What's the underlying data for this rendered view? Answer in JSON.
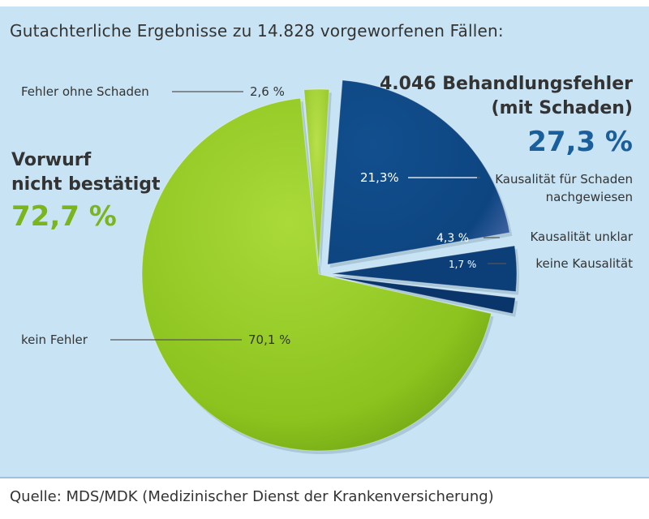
{
  "chart_data": {
    "type": "pie",
    "title": "Gutachterliche Ergebnisse zu 14.828 vorgeworfenen Fällen:",
    "source": "Quelle: MDS/MDK (Medizinischer Dienst der Krankenversicherung)",
    "groups": [
      {
        "label_line1": "Vorwurf",
        "label_line2": "nicht bestätigt",
        "percent_text": "72,7 %",
        "value": 72.7
      },
      {
        "label_line1": "4.046 Behandlungsfehler",
        "label_line2": "(mit Schaden)",
        "percent_text": "27,3 %",
        "value": 27.3
      }
    ],
    "slices": [
      {
        "name": "kein Fehler",
        "value": 70.1,
        "value_text": "70,1 %",
        "group": 0,
        "color": "#8cc31e"
      },
      {
        "name": "Fehler ohne Schaden",
        "value": 2.6,
        "value_text": "2,6 %",
        "group": 0,
        "color": "#a6d42c"
      },
      {
        "name_line1": "Kausalität für Schaden",
        "name_line2": "nachgewiesen",
        "value": 21.3,
        "value_text": "21,3%",
        "group": 1,
        "color": "#0f4a86"
      },
      {
        "name": "Kausalität unklar",
        "value": 4.3,
        "value_text": "4,3 %",
        "group": 1,
        "color": "#0c3f78"
      },
      {
        "name": "keine Kausalität",
        "value": 1.7,
        "value_text": "1,7 %",
        "group": 1,
        "color": "#0a356a"
      }
    ],
    "colors": {
      "green_text": "#7ab51d",
      "blue_text": "#1b5e9c",
      "dark_text": "#333333"
    }
  }
}
